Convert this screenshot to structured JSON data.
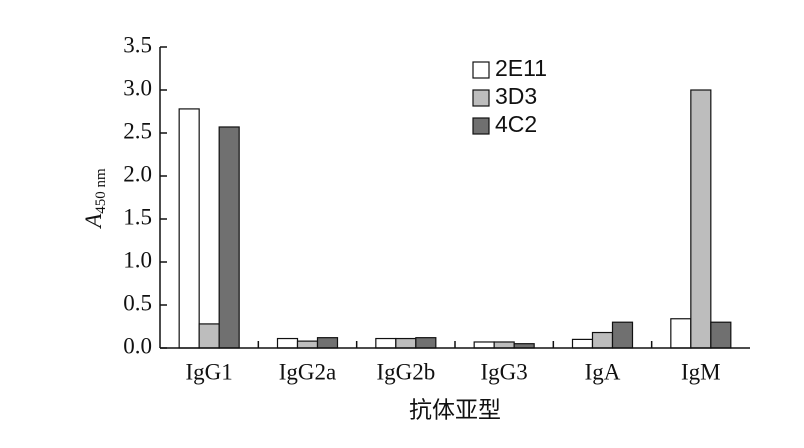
{
  "chart_data": {
    "type": "bar",
    "y_label": "A",
    "y_label_sub": "450 nm",
    "x_label": "抗体亚型",
    "categories": [
      "IgG1",
      "IgG2a",
      "IgG2b",
      "IgG3",
      "IgA",
      "IgM"
    ],
    "series": [
      {
        "name": "2E11",
        "color": "#ffffff",
        "values": [
          2.78,
          0.11,
          0.11,
          0.07,
          0.1,
          0.34
        ]
      },
      {
        "name": "3D3",
        "color": "#bdbdbd",
        "values": [
          0.28,
          0.08,
          0.11,
          0.07,
          0.18,
          3.0
        ]
      },
      {
        "name": "4C2",
        "color": "#707070",
        "values": [
          2.57,
          0.12,
          0.12,
          0.05,
          0.3,
          0.3
        ]
      }
    ],
    "ylim": [
      0,
      3.5
    ],
    "yticks": [
      {
        "value": 0,
        "label": "0.0"
      },
      0.5,
      {
        "value": 1,
        "label": "1.0"
      },
      1.5,
      {
        "value": 2,
        "label": "2.0"
      },
      2.5,
      {
        "value": 3,
        "label": "3.0"
      },
      3.5
    ],
    "grid": false,
    "legend": "top-right"
  }
}
